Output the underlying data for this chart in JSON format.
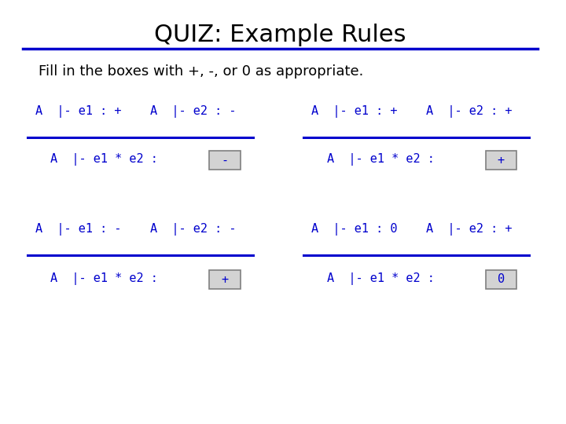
{
  "title": "QUIZ: Example Rules",
  "subtitle": "Fill in the boxes with +, -, or 0 as appropriate.",
  "title_color": "#000000",
  "subtitle_color": "#000000",
  "blue_color": "#0000CD",
  "line_color": "#0000CD",
  "box_fill": "#D3D3D3",
  "box_edge": "#808080",
  "examples": [
    {
      "premise1": "A  |- e1 : +    A  |- e2 : -",
      "conclusion": "A  |- e1 * e2 :",
      "answer": "-",
      "col": 0,
      "row": 0
    },
    {
      "premise1": "A  |- e1 : +    A  |- e2 : +",
      "conclusion": "A  |- e1 * e2 :",
      "answer": "+",
      "col": 1,
      "row": 0
    },
    {
      "premise1": "A  |- e1 : -    A  |- e2 : -",
      "conclusion": "A  |- e1 * e2 :",
      "answer": "+",
      "col": 0,
      "row": 1
    },
    {
      "premise1": "A  |- e1 : 0    A  |- e2 : +",
      "conclusion": "A  |- e1 * e2 :",
      "answer": "0",
      "col": 1,
      "row": 1
    }
  ]
}
